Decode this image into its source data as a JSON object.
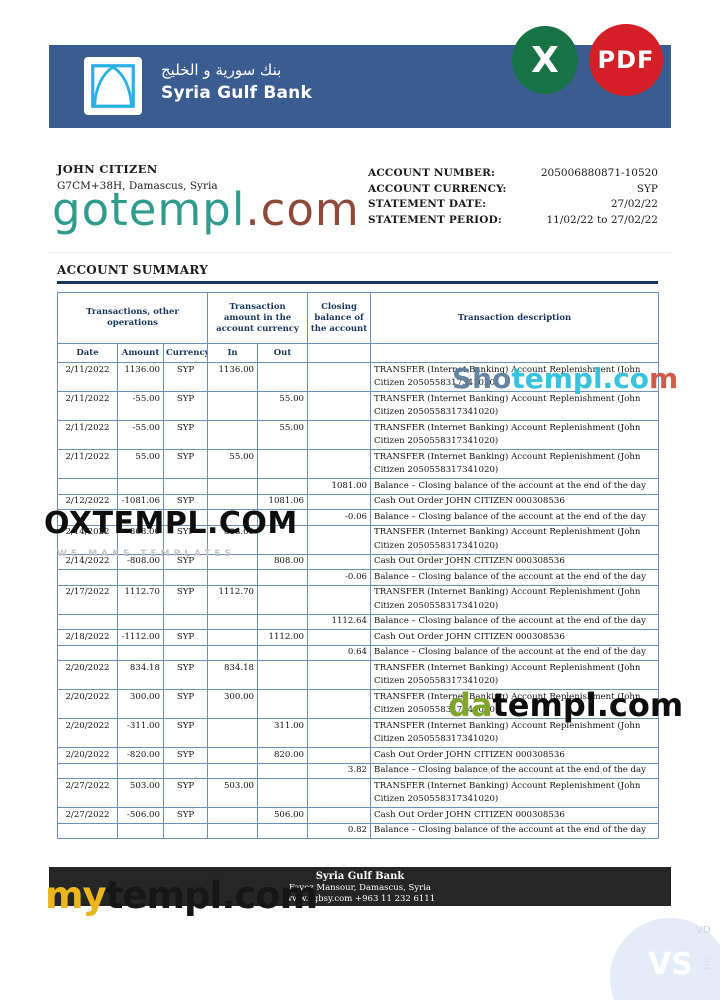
{
  "colors": {
    "banner_blue": "#3b5c90",
    "logo_cyan": "#29b0e6",
    "excel_green": "#177245",
    "pdf_red": "#d41f27",
    "header_navy": "#17365d",
    "table_border": "#6a90bf",
    "footer_bg": "#262626",
    "gotempl_teal": "#2f9c8e",
    "gotempl_brown": "#8d4a38",
    "shotempl_cyan": "#2fc0dd",
    "datempl_green": "#7fa62c",
    "mytempl_yellow": "#eab61b",
    "vs_circle_blue": "#e3edf8"
  },
  "header": {
    "bank_name_ar": "بنك سورية و الخليج",
    "bank_name_en": "Syria Gulf Bank"
  },
  "badges": {
    "excel_label": "X",
    "pdf_label": "PDF"
  },
  "customer": {
    "name": "JOHN CITIZEN",
    "address": "G7CM+38H, Damascus, Syria"
  },
  "account_info": {
    "rows": [
      {
        "label": "ACCOUNT NUMBER:",
        "value": "205006880871-10520"
      },
      {
        "label": "ACCOUNT CURRENCY:",
        "value": "SYP"
      },
      {
        "label": "STATEMENT DATE:",
        "value": "27/02/22"
      },
      {
        "label": "STATEMENT PERIOD:",
        "value": "11/02/22 to 27/02/22"
      }
    ]
  },
  "summary": {
    "title": "ACCOUNT SUMMARY"
  },
  "table": {
    "group_headers": [
      "Transactions, other operations",
      "Transaction amount in the account currency",
      "Closing balance of the account",
      "Transaction description"
    ],
    "sub_headers": [
      "Date",
      "Amount",
      "Currency",
      "In",
      "Out"
    ],
    "rows": [
      {
        "date": "2/11/2022",
        "amount": "1136.00",
        "currency": "SYP",
        "in": "1136.00",
        "out": "",
        "balance": "",
        "description": "TRANSFER (Internet Banking) Account Replenishment (John Citizen 2050558317341020)"
      },
      {
        "date": "2/11/2022",
        "amount": "-55.00",
        "currency": "SYP",
        "in": "",
        "out": "55.00",
        "balance": "",
        "description": "TRANSFER (Internet Banking) Account Replenishment (John Citizen 2050558317341020)"
      },
      {
        "date": "2/11/2022",
        "amount": "-55.00",
        "currency": "SYP",
        "in": "",
        "out": "55.00",
        "balance": "",
        "description": "TRANSFER (Internet Banking) Account Replenishment (John Citizen 2050558317341020)"
      },
      {
        "date": "2/11/2022",
        "amount": "55.00",
        "currency": "SYP",
        "in": "55.00",
        "out": "",
        "balance": "",
        "description": "TRANSFER (Internet Banking) Account Replenishment (John Citizen 2050558317341020)"
      },
      {
        "date": "",
        "amount": "",
        "currency": "",
        "in": "",
        "out": "",
        "balance": "1081.00",
        "description": "Balance – Closing balance of the account at the end of the day"
      },
      {
        "date": "2/12/2022",
        "amount": "-1081.06",
        "currency": "SYP",
        "in": "",
        "out": "1081.06",
        "balance": "",
        "description": "Cash Out Order JOHN CITIZEN 000308536"
      },
      {
        "date": "",
        "amount": "",
        "currency": "",
        "in": "",
        "out": "",
        "balance": "-0.06",
        "description": "Balance – Closing balance of the account at the end of the day"
      },
      {
        "date": "2/14/2022",
        "amount": "808.00",
        "currency": "SYP",
        "in": "808.00",
        "out": "",
        "balance": "",
        "description": "TRANSFER (Internet Banking) Account Replenishment (John Citizen 2050558317341020)"
      },
      {
        "date": "2/14/2022",
        "amount": "-808.00",
        "currency": "SYP",
        "in": "",
        "out": "808.00",
        "balance": "",
        "description": "Cash Out Order JOHN CITIZEN 000308536"
      },
      {
        "date": "",
        "amount": "",
        "currency": "",
        "in": "",
        "out": "",
        "balance": "-0.06",
        "description": "Balance – Closing balance of the account at the end of the day"
      },
      {
        "date": "2/17/2022",
        "amount": "1112.70",
        "currency": "SYP",
        "in": "1112.70",
        "out": "",
        "balance": "",
        "description": "TRANSFER (Internet Banking) Account Replenishment (John Citizen 2050558317341020)"
      },
      {
        "date": "",
        "amount": "",
        "currency": "",
        "in": "",
        "out": "",
        "balance": "1112.64",
        "description": "Balance – Closing balance of the account at the end of the day"
      },
      {
        "date": "2/18/2022",
        "amount": "-1112.00",
        "currency": "SYP",
        "in": "",
        "out": "1112.00",
        "balance": "",
        "description": "Cash Out Order JOHN CITIZEN 000308536"
      },
      {
        "date": "",
        "amount": "",
        "currency": "",
        "in": "",
        "out": "",
        "balance": "0.64",
        "description": "Balance – Closing balance of the account at the end of the day"
      },
      {
        "date": "2/20/2022",
        "amount": "834.18",
        "currency": "SYP",
        "in": "834.18",
        "out": "",
        "balance": "",
        "description": "TRANSFER (Internet Banking) Account Replenishment (John Citizen 2050558317341020)"
      },
      {
        "date": "2/20/2022",
        "amount": "300.00",
        "currency": "SYP",
        "in": "300.00",
        "out": "",
        "balance": "",
        "description": "TRANSFER (Internet Banking) Account Replenishment (John Citizen 2050558317341020)"
      },
      {
        "date": "2/20/2022",
        "amount": "-311.00",
        "currency": "SYP",
        "in": "",
        "out": "311.00",
        "balance": "",
        "description": "TRANSFER (Internet Banking) Account Replenishment (John Citizen 2050558317341020)"
      },
      {
        "date": "2/20/2022",
        "amount": "-820.00",
        "currency": "SYP",
        "in": "",
        "out": "820.00",
        "balance": "",
        "description": "Cash Out Order JOHN CITIZEN 000308536"
      },
      {
        "date": "",
        "amount": "",
        "currency": "",
        "in": "",
        "out": "",
        "balance": "3.82",
        "description": "Balance – Closing balance of the account at the end of the day"
      },
      {
        "date": "2/27/2022",
        "amount": "503.00",
        "currency": "SYP",
        "in": "503.00",
        "out": "",
        "balance": "",
        "description": "TRANSFER (Internet Banking) Account Replenishment (John Citizen 2050558317341020)"
      },
      {
        "date": "2/27/2022",
        "amount": "-506.00",
        "currency": "SYP",
        "in": "",
        "out": "506.00",
        "balance": "",
        "description": "Cash Out Order JOHN CITIZEN 000308536"
      },
      {
        "date": "",
        "amount": "",
        "currency": "",
        "in": "",
        "out": "",
        "balance": "0.82",
        "description": "Balance – Closing balance of the account at the end of the day"
      }
    ]
  },
  "watermarks": {
    "gotempl": {
      "p1": "gotempl",
      "p2": ".com"
    },
    "shotempl": {
      "p1": "Sho",
      "p2": "templ.co",
      "p3": "m"
    },
    "oxtempl": {
      "text": "OXTEMPL.COM",
      "subtext": "WE MAKE TEMPLATES"
    },
    "datempl": {
      "p1": "da",
      "p2": "templ.com"
    },
    "mytempl": {
      "p1": "my",
      "p2": "templ.com"
    },
    "vs_badge": "VS",
    "edge_fragment_1": "VD",
    "edge_fragment_2": "lm"
  },
  "footer": {
    "bank_name": "Syria Gulf Bank",
    "address": "Fayez Mansour, Damascus, Syria",
    "contact": "www.sgbsy.com +963 11 232 6111"
  }
}
